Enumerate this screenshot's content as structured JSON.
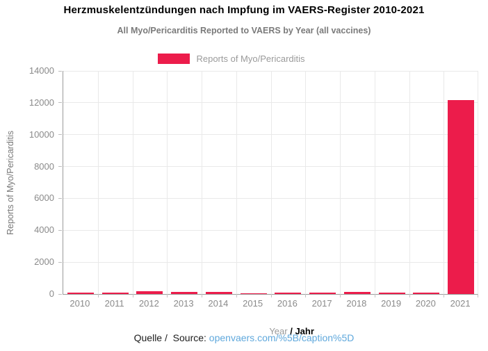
{
  "title": "Herzmuskelentzündungen nach Impfung im VAERS-Register 2010-2021",
  "subtitle": "All Myo/Pericarditis Reported to VAERS by Year (all vaccines)",
  "legend": {
    "label": "Reports of Myo/Pericarditis",
    "swatch_color": "#EC1C4B"
  },
  "chart_data": {
    "type": "bar",
    "title": "Herzmuskelentzündungen nach Impfung im VAERS-Register 2010-2021",
    "subtitle": "All Myo/Pericarditis Reported to VAERS by Year (all vaccines)",
    "categories": [
      "2010",
      "2011",
      "2012",
      "2013",
      "2014",
      "2015",
      "2016",
      "2017",
      "2018",
      "2019",
      "2020",
      "2021"
    ],
    "values": [
      100,
      100,
      155,
      145,
      110,
      50,
      80,
      95,
      145,
      95,
      80,
      12150
    ],
    "series_name": "Reports of Myo/Pericarditis",
    "xlabel_primary": "Year",
    "xlabel_secondary": "/ Jahr",
    "ylabel": "Reports of Myo/Pericarditis",
    "ylim": [
      0,
      14000
    ],
    "ytick_step": 2000,
    "yticks": [
      0,
      2000,
      4000,
      6000,
      8000,
      10000,
      12000,
      14000
    ],
    "bar_color": "#EC1C4B",
    "grid": true,
    "legend_position": "top-center"
  },
  "source": {
    "label": "Quelle /  Source: ",
    "link_text": "openvaers.com/%5B/caption%5D",
    "link_color": "#5FA8DC"
  },
  "colors": {
    "bar": "#EC1C4B",
    "axis_line": "#9B9B9B",
    "gridline": "#E9E9E9",
    "tick_label": "#8A8A8A",
    "subtitle_text": "#7A7A7A",
    "legend_text": "#9A9A9A",
    "link": "#5FA8DC"
  }
}
